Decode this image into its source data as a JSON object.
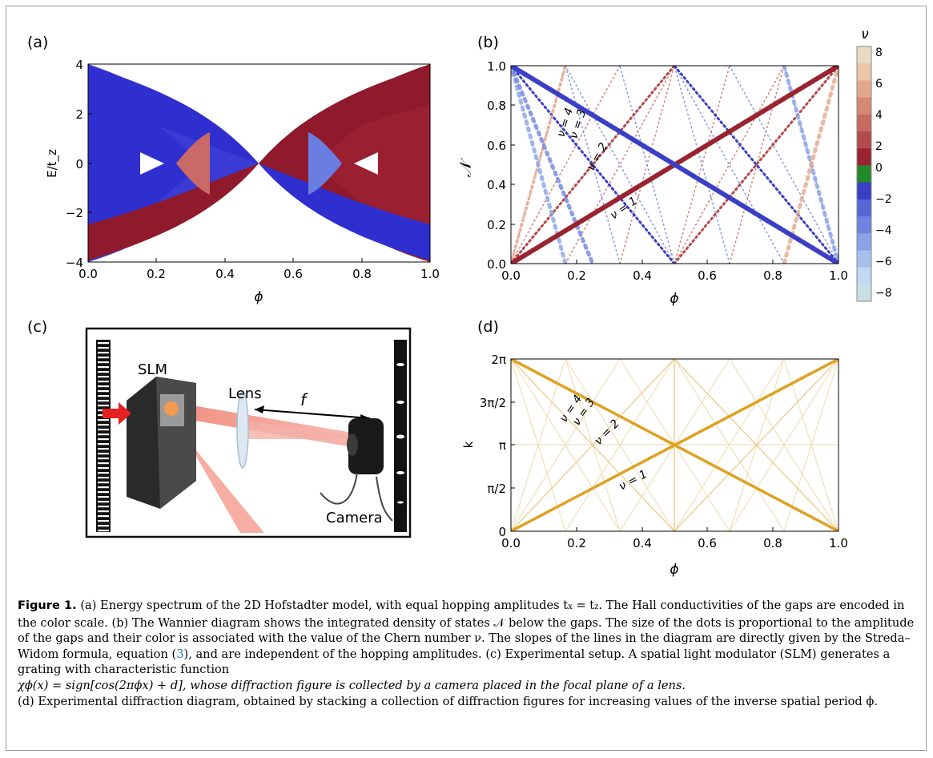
{
  "panels": {
    "a": {
      "label": "(a)",
      "xlabel": "ϕ",
      "ylabel": "E/t_z",
      "xticks": [
        "0.0",
        "0.2",
        "0.4",
        "0.6",
        "0.8",
        "1.0"
      ],
      "yticks": [
        "4",
        "2",
        "0",
        "−2",
        "−4"
      ]
    },
    "b": {
      "label": "(b)",
      "xlabel": "ϕ",
      "ylabel": "𝒩",
      "xticks": [
        "0.0",
        "0.2",
        "0.4",
        "0.6",
        "0.8",
        "1.0"
      ],
      "yticks": [
        "1.0",
        "0.8",
        "0.6",
        "0.4",
        "0.2",
        "0.0"
      ],
      "line_labels": [
        "ν = 4",
        "ν = 3",
        "ν = 2",
        "ν = 1"
      ],
      "colorbar": {
        "title": "ν",
        "ticks": [
          "8",
          "6",
          "4",
          "2",
          "0",
          "−2",
          "−4",
          "−6",
          "−8"
        ],
        "colors": [
          "#e7dcc3",
          "#ecc6a8",
          "#e2a88d",
          "#d58873",
          "#c76a5f",
          "#b34a4c",
          "#9a2330",
          "#238a2a",
          "#3a3fc6",
          "#5566d6",
          "#6f84e0",
          "#8aa2e8",
          "#a6bfef",
          "#c1d7f2",
          "#c9e0e6"
        ]
      }
    },
    "c": {
      "label": "(c)",
      "slm_label": "SLM",
      "lens_label": "Lens",
      "focal_label": "f",
      "camera_label": "Camera"
    },
    "d": {
      "label": "(d)",
      "xlabel": "ϕ",
      "ylabel": "k",
      "xticks": [
        "0.0",
        "0.2",
        "0.4",
        "0.6",
        "0.8",
        "1.0"
      ],
      "yticks": [
        "2π",
        "3π/2",
        "π",
        "π/2",
        "0"
      ],
      "line_labels": [
        "ν = 4",
        "ν = 3",
        "ν = 2",
        "ν = 1"
      ]
    }
  },
  "colors": {
    "red": "#8e1a2b",
    "blue": "#2f2fd0",
    "orange": "#e0a020"
  },
  "caption": {
    "title": "Figure 1.",
    "text_1": "(a) Energy spectrum of the 2D Hofstadter model, with equal hopping amplitudes t",
    "text_2": ". The Hall conductivities of the gaps are encoded in the color scale. (b) The Wannier diagram shows the integrated density of states 𝒩 below the gaps. The size of the dots is proportional to the amplitude of the gaps and their color is associated with the value of the Chern number ν. The slopes of the lines in the diagram are directly given by the Streda–Widom formula, equation (",
    "ref": "3",
    "text_3": "), and are independent of the hopping amplitudes. (c) Experimental setup. A spatial light modulator (SLM) generates a grating with characteristic function",
    "formula": "χϕ(x) =  sign[cos(2πϕx) + d], whose diffraction figure is collected by a camera placed in the focal plane of a lens.",
    "text_4": "(d) Experimental diffraction diagram, obtained by stacking a collection of diffraction figures for increasing values of the inverse spatial period ϕ."
  }
}
